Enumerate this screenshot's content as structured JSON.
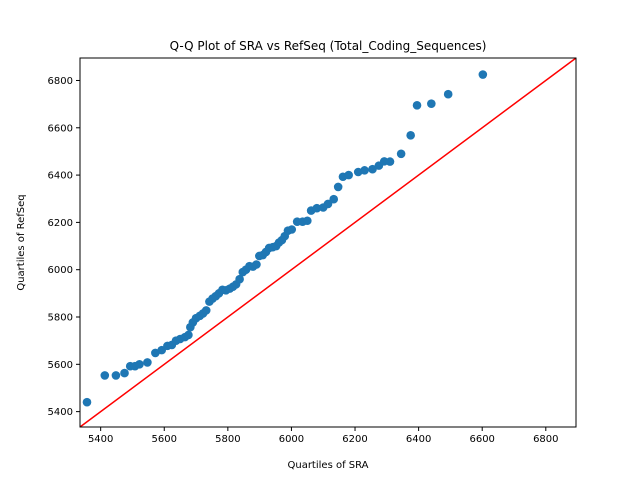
{
  "chart_data": {
    "type": "scatter",
    "title": "Q-Q Plot of SRA vs RefSeq (Total_Coding_Sequences)",
    "xlabel": "Quartiles of SRA",
    "ylabel": "Quartiles of RefSeq",
    "xlim": [
      5335,
      6895
    ],
    "ylim": [
      5335,
      6895
    ],
    "xticks": [
      5400,
      5600,
      5800,
      6000,
      6200,
      6400,
      6600,
      6800
    ],
    "yticks": [
      5400,
      5600,
      5800,
      6000,
      6200,
      6400,
      6600,
      6800
    ],
    "grid": false,
    "legend": "none",
    "colors": {
      "points": "#1f77b4",
      "reference_line": "#ff0000"
    },
    "reference_line": {
      "from": [
        5335,
        5335
      ],
      "to": [
        6895,
        6895
      ]
    },
    "points": [
      [
        5357,
        5440
      ],
      [
        5413,
        5553
      ],
      [
        5448,
        5553
      ],
      [
        5475,
        5563
      ],
      [
        5493,
        5592
      ],
      [
        5508,
        5592
      ],
      [
        5522,
        5600
      ],
      [
        5547,
        5608
      ],
      [
        5572,
        5648
      ],
      [
        5592,
        5660
      ],
      [
        5610,
        5678
      ],
      [
        5624,
        5682
      ],
      [
        5637,
        5700
      ],
      [
        5650,
        5707
      ],
      [
        5665,
        5715
      ],
      [
        5676,
        5724
      ],
      [
        5682,
        5757
      ],
      [
        5690,
        5777
      ],
      [
        5700,
        5795
      ],
      [
        5712,
        5805
      ],
      [
        5722,
        5815
      ],
      [
        5732,
        5828
      ],
      [
        5742,
        5865
      ],
      [
        5752,
        5878
      ],
      [
        5762,
        5888
      ],
      [
        5772,
        5900
      ],
      [
        5783,
        5915
      ],
      [
        5794,
        5913
      ],
      [
        5806,
        5920
      ],
      [
        5816,
        5928
      ],
      [
        5826,
        5938
      ],
      [
        5837,
        5960
      ],
      [
        5847,
        5990
      ],
      [
        5857,
        6000
      ],
      [
        5868,
        6015
      ],
      [
        5879,
        6013
      ],
      [
        5890,
        6022
      ],
      [
        5899,
        6058
      ],
      [
        5910,
        6062
      ],
      [
        5920,
        6075
      ],
      [
        5930,
        6092
      ],
      [
        5941,
        6095
      ],
      [
        5952,
        6100
      ],
      [
        5961,
        6115
      ],
      [
        5970,
        6125
      ],
      [
        5979,
        6142
      ],
      [
        5989,
        6165
      ],
      [
        6001,
        6170
      ],
      [
        6018,
        6203
      ],
      [
        6035,
        6203
      ],
      [
        6050,
        6207
      ],
      [
        6062,
        6250
      ],
      [
        6080,
        6260
      ],
      [
        6100,
        6263
      ],
      [
        6115,
        6278
      ],
      [
        6133,
        6298
      ],
      [
        6147,
        6350
      ],
      [
        6162,
        6393
      ],
      [
        6180,
        6400
      ],
      [
        6210,
        6413
      ],
      [
        6230,
        6420
      ],
      [
        6255,
        6425
      ],
      [
        6275,
        6440
      ],
      [
        6292,
        6458
      ],
      [
        6310,
        6457
      ],
      [
        6345,
        6490
      ],
      [
        6375,
        6568
      ],
      [
        6395,
        6695
      ],
      [
        6440,
        6702
      ],
      [
        6493,
        6742
      ],
      [
        6602,
        6825
      ]
    ]
  }
}
